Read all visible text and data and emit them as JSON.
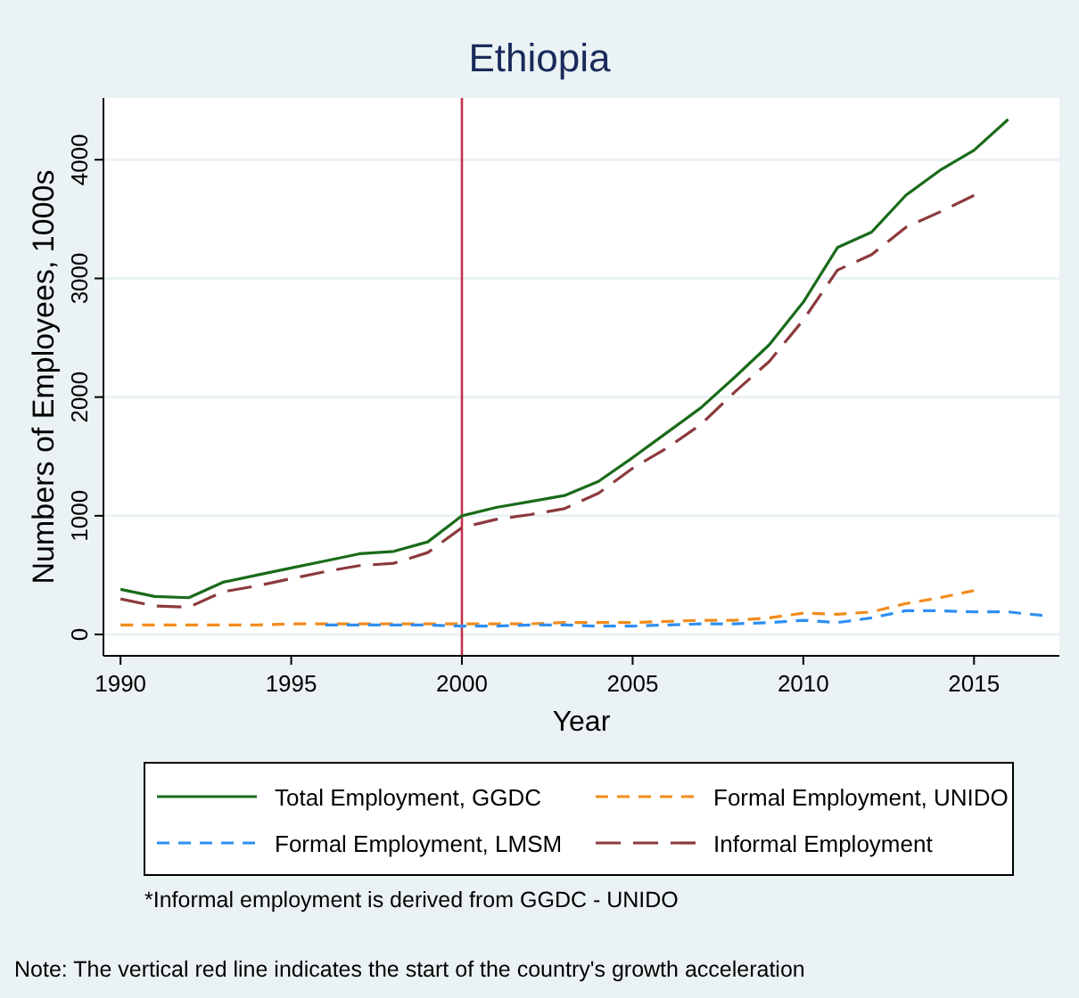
{
  "chart_data": {
    "type": "line",
    "title": "Ethiopia",
    "xlabel": "Year",
    "ylabel": "Numbers of Employees, 1000s",
    "xlim": [
      1989.5,
      2017.5
    ],
    "xticks": [
      1990,
      1995,
      2000,
      2005,
      2010,
      2015
    ],
    "ylim": [
      -180,
      4520
    ],
    "yticks": [
      0,
      1000,
      2000,
      3000,
      4000
    ],
    "grid": "y",
    "legend": "bottom",
    "marker": "none",
    "series": [
      {
        "name": "Total Employment, GGDC",
        "color": "#1a6b1a",
        "line_style": "solid",
        "x": [
          1990,
          1991,
          1992,
          1993,
          1994,
          1995,
          1996,
          1997,
          1998,
          1999,
          2000,
          2001,
          2002,
          2003,
          2004,
          2005,
          2006,
          2007,
          2008,
          2009,
          2010,
          2011,
          2012,
          2013,
          2014,
          2015,
          2016
        ],
        "values": [
          380,
          320,
          310,
          440,
          500,
          560,
          620,
          680,
          700,
          780,
          1000,
          1070,
          1120,
          1170,
          1290,
          1490,
          1700,
          1910,
          2170,
          2440,
          2800,
          3260,
          3390,
          3700,
          3910,
          4080,
          4340
        ]
      },
      {
        "name": "Formal Employment, UNIDO",
        "color": "#f28c1c",
        "line_style": "dashed",
        "x": [
          1990,
          1991,
          1992,
          1993,
          1994,
          1995,
          1996,
          1997,
          1998,
          1999,
          2000,
          2001,
          2002,
          2003,
          2004,
          2005,
          2006,
          2007,
          2008,
          2009,
          2010,
          2011,
          2012,
          2013,
          2014,
          2015
        ],
        "values": [
          80,
          80,
          80,
          80,
          80,
          90,
          90,
          90,
          90,
          90,
          90,
          90,
          90,
          100,
          100,
          100,
          110,
          120,
          120,
          140,
          180,
          170,
          190,
          260,
          310,
          370
        ]
      },
      {
        "name": "Formal Employment, LMSM",
        "color": "#2f8ff2",
        "line_style": "dashed",
        "x": [
          1996,
          1997,
          1998,
          1999,
          2000,
          2001,
          2002,
          2003,
          2004,
          2005,
          2006,
          2007,
          2008,
          2009,
          2010,
          2011,
          2012,
          2013,
          2014,
          2015,
          2016,
          2017
        ],
        "values": [
          80,
          80,
          80,
          80,
          70,
          70,
          80,
          80,
          70,
          70,
          80,
          90,
          90,
          100,
          120,
          100,
          140,
          200,
          200,
          190,
          190,
          160
        ]
      },
      {
        "name": "Informal Employment",
        "color": "#8c3a3e",
        "line_style": "longdash",
        "x": [
          1990,
          1991,
          1992,
          1993,
          1994,
          1995,
          1996,
          1997,
          1998,
          1999,
          2000,
          2001,
          2002,
          2003,
          2004,
          2005,
          2006,
          2007,
          2008,
          2009,
          2010,
          2011,
          2012,
          2013,
          2014,
          2015
        ],
        "values": [
          300,
          240,
          230,
          360,
          410,
          470,
          530,
          580,
          600,
          690,
          900,
          970,
          1010,
          1060,
          1190,
          1400,
          1570,
          1770,
          2045,
          2300,
          2650,
          3070,
          3200,
          3430,
          3560,
          3700
        ]
      }
    ],
    "ref_lines": [
      {
        "axis": "x",
        "value": 2000,
        "color": "#c2344d"
      }
    ],
    "annotations": [
      "*Informal employment is derived from GGDC - UNIDO",
      "Note: The vertical red line indicates the start of the country's growth acceleration"
    ]
  }
}
